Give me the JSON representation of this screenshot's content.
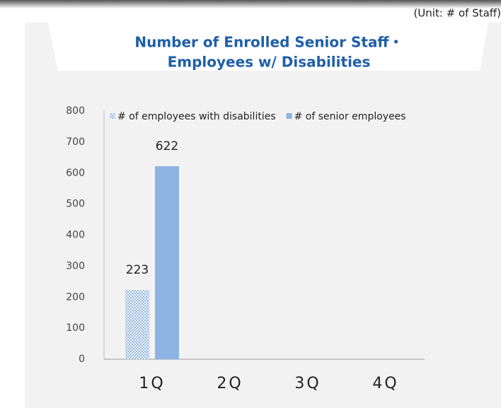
{
  "chart_data": {
    "type": "bar",
    "unit_note": "(Unit: # of Staff)",
    "title_lines": [
      "Number of Enrolled Senior Staff・",
      "Employees w/ Disabilities"
    ],
    "categories": [
      "1Q",
      "2Q",
      "3Q",
      "4Q"
    ],
    "series": [
      {
        "name": "# of employees with disabilities",
        "color": "#8db3e2",
        "pattern": "checker",
        "values": [
          223,
          null,
          null,
          null
        ]
      },
      {
        "name": "# of senior employees",
        "color": "#8db3e2",
        "values": [
          622,
          null,
          null,
          null
        ]
      }
    ],
    "ylim": [
      0,
      800
    ],
    "yticks": [
      0,
      100,
      200,
      300,
      400,
      500,
      600,
      700,
      800
    ],
    "grid": false,
    "legend": "top",
    "data_labels": true
  }
}
